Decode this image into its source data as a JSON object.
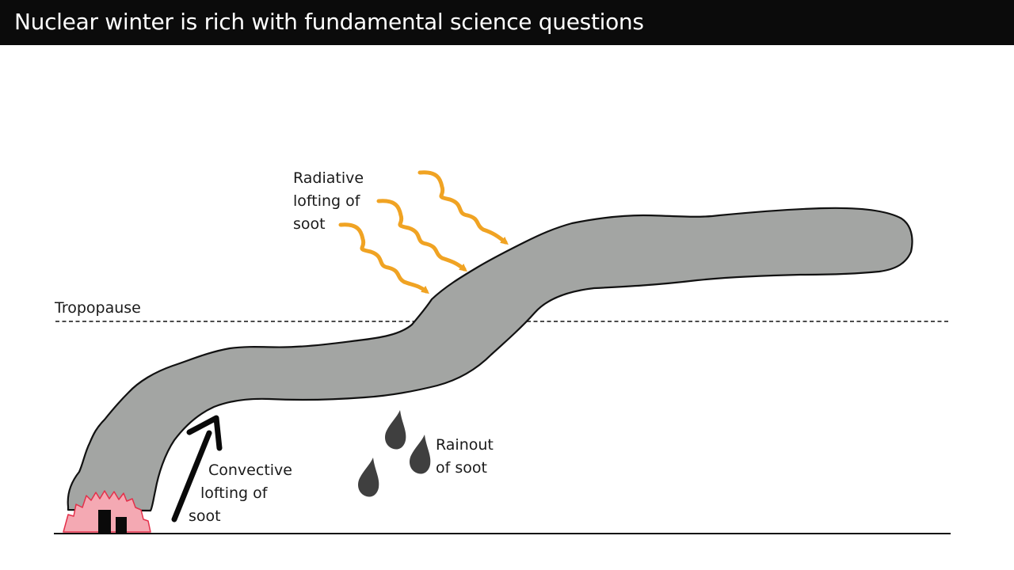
{
  "slide": {
    "title": "Nuclear winter is rich with fundamental science questions"
  },
  "labels": {
    "tropopause": "Tropopause",
    "radiative": [
      "Radiative",
      "lofting of",
      "soot"
    ],
    "convective": [
      "Convective",
      "lofting of",
      "soot"
    ],
    "rainout": [
      "Rainout",
      "of soot"
    ]
  },
  "colors": {
    "title_bar": "#0b0b0b",
    "soot_plume": "#a3a5a3",
    "sunlight_arrows": "#f0a323",
    "fire": "#f4a9b3",
    "fire_outline": "#e4304a",
    "raindrops": "#3f3f3f"
  },
  "icons": [
    "sunlight-wave-arrow",
    "convective-arrow",
    "raindrop",
    "fire",
    "building"
  ]
}
